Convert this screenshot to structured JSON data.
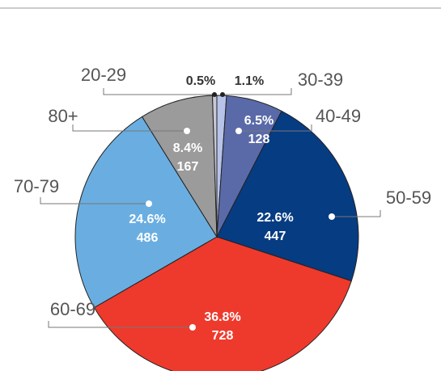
{
  "chart_data": {
    "type": "pie",
    "categories": [
      "30-39",
      "40-49",
      "50-59",
      "60-69",
      "70-79",
      "80+",
      "20-29"
    ],
    "values": [
      1.1,
      6.5,
      22.6,
      36.8,
      24.6,
      8.4,
      0.5
    ],
    "value_labels": [
      "1.1%",
      "6.5%",
      "22.6%",
      "36.8%",
      "24.6%",
      "8.4%",
      "0.5%"
    ],
    "counts": [
      null,
      128,
      447,
      728,
      486,
      167,
      null
    ],
    "colors": [
      "#b7c3e8",
      "#5a6aa8",
      "#063c82",
      "#ee3a2c",
      "#6aaee1",
      "#9b9b9b",
      "#c8c8d6"
    ]
  }
}
